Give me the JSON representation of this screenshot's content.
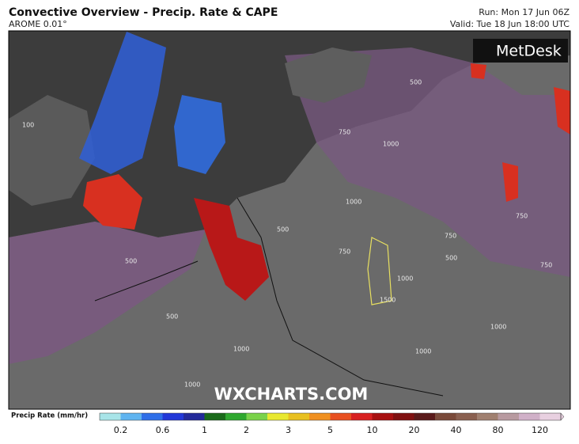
{
  "header": {
    "title": "Convective Overview - Precip. Rate & CAPE",
    "model": "AROME 0.01°",
    "run": "Run: Mon 17 Jun 06Z",
    "valid": "Valid: Tue 18 Jun 18:00 UTC"
  },
  "map": {
    "logo": "MetDesk",
    "watermark": "WXCHARTS.COM",
    "contour_labels": [
      "100",
      "500",
      "500",
      "500",
      "750",
      "1000",
      "750",
      "1000",
      "1000",
      "750",
      "1500",
      "1000",
      "1000",
      "500",
      "750",
      "1000",
      "1000",
      "500",
      "750"
    ]
  },
  "legend": {
    "label": "Precip Rate (mm/hr)",
    "ticks": [
      "0.2",
      "0.6",
      "1",
      "2",
      "3",
      "5",
      "10",
      "20",
      "40",
      "80",
      "120"
    ],
    "colors": [
      "#a8e4e8",
      "#5fb4f0",
      "#2f6fe8",
      "#2238d8",
      "#232a9a",
      "#1a6a1a",
      "#2fa82f",
      "#7ad24a",
      "#e8e830",
      "#e8c020",
      "#f09020",
      "#e85020",
      "#d82020",
      "#a81010",
      "#801010",
      "#5a1a1a",
      "#7a4a3a",
      "#8a6050",
      "#a08070",
      "#b89aa0",
      "#d0b0c8",
      "#e8d0e0"
    ]
  }
}
